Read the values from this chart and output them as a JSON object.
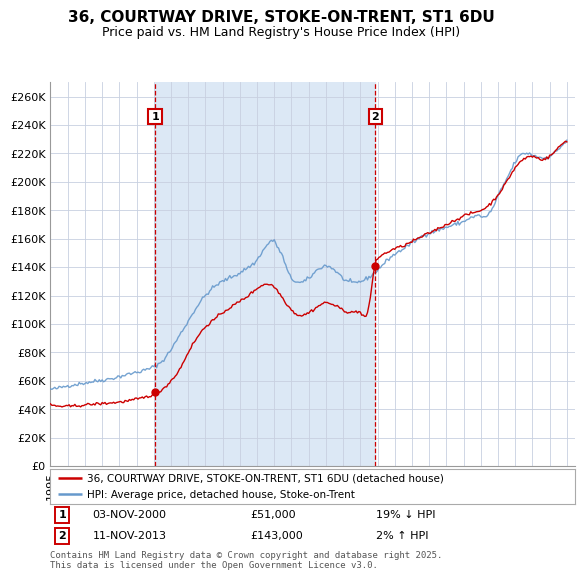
{
  "title": "36, COURTWAY DRIVE, STOKE-ON-TRENT, ST1 6DU",
  "subtitle": "Price paid vs. HM Land Registry's House Price Index (HPI)",
  "ylim": [
    0,
    270000
  ],
  "yticks": [
    0,
    20000,
    40000,
    60000,
    80000,
    100000,
    120000,
    140000,
    160000,
    180000,
    200000,
    220000,
    240000,
    260000
  ],
  "ytick_labels": [
    "£0",
    "£20K",
    "£40K",
    "£60K",
    "£80K",
    "£100K",
    "£120K",
    "£140K",
    "£160K",
    "£180K",
    "£200K",
    "£220K",
    "£240K",
    "£260K"
  ],
  "hpi_color": "#6699CC",
  "price_color": "#CC0000",
  "annotation_color": "#CC0000",
  "grid_color": "#C8D0E0",
  "shade_color": "#DCE8F5",
  "background_color": "#FFFFFF",
  "sale1_date": 2001.08,
  "sale1_price": 51000,
  "sale2_date": 2013.87,
  "sale2_price": 143000,
  "legend_items": [
    "36, COURTWAY DRIVE, STOKE-ON-TRENT, ST1 6DU (detached house)",
    "HPI: Average price, detached house, Stoke-on-Trent"
  ],
  "annotation1_text": "1",
  "annotation2_text": "2",
  "footnote": "Contains HM Land Registry data © Crown copyright and database right 2025.\nThis data is licensed under the Open Government Licence v3.0.",
  "title_fontsize": 11,
  "subtitle_fontsize": 9,
  "tick_fontsize": 8,
  "legend_fontsize": 8,
  "xmin": 1995.0,
  "xmax": 2025.5,
  "hpi_anchors_x": [
    1995.0,
    1995.5,
    1996.0,
    1996.5,
    1997.0,
    1997.5,
    1998.0,
    1998.5,
    1999.0,
    1999.5,
    2000.0,
    2000.5,
    2001.0,
    2001.5,
    2002.0,
    2002.5,
    2003.0,
    2003.5,
    2004.0,
    2004.5,
    2005.0,
    2005.5,
    2006.0,
    2006.5,
    2007.0,
    2007.25,
    2007.5,
    2007.75,
    2008.0,
    2008.25,
    2008.5,
    2008.75,
    2009.0,
    2009.25,
    2009.5,
    2009.75,
    2010.0,
    2010.25,
    2010.5,
    2010.75,
    2011.0,
    2011.25,
    2011.5,
    2011.75,
    2012.0,
    2012.25,
    2012.5,
    2012.75,
    2013.0,
    2013.25,
    2013.5,
    2013.75,
    2014.0,
    2014.25,
    2014.5,
    2014.75,
    2015.0,
    2015.25,
    2015.5,
    2015.75,
    2016.0,
    2016.25,
    2016.5,
    2016.75,
    2017.0,
    2017.25,
    2017.5,
    2017.75,
    2018.0,
    2018.25,
    2018.5,
    2018.75,
    2019.0,
    2019.25,
    2019.5,
    2019.75,
    2020.0,
    2020.25,
    2020.5,
    2020.75,
    2021.0,
    2021.25,
    2021.5,
    2021.75,
    2022.0,
    2022.25,
    2022.5,
    2022.75,
    2023.0,
    2023.25,
    2023.5,
    2023.75,
    2024.0,
    2024.25,
    2024.5,
    2024.75,
    2025.0
  ],
  "hpi_anchors_y": [
    54000,
    55000,
    56500,
    57500,
    58500,
    59500,
    60500,
    61500,
    63000,
    64500,
    66000,
    67500,
    70000,
    74000,
    82000,
    92000,
    102000,
    112000,
    120000,
    126000,
    130000,
    133000,
    136000,
    140000,
    145000,
    150000,
    154000,
    158000,
    158000,
    153000,
    147000,
    138000,
    132000,
    130000,
    129000,
    130000,
    132000,
    135000,
    138000,
    140000,
    141000,
    140000,
    138000,
    135000,
    132000,
    130000,
    129000,
    129000,
    130000,
    131000,
    133000,
    135000,
    138000,
    141000,
    144000,
    147000,
    149000,
    151000,
    153000,
    155000,
    157000,
    159000,
    161000,
    163000,
    164000,
    165000,
    166000,
    167000,
    168000,
    169000,
    170000,
    171000,
    172000,
    174000,
    175000,
    176000,
    176000,
    175000,
    178000,
    183000,
    190000,
    196000,
    202000,
    208000,
    214000,
    218000,
    220000,
    220000,
    219000,
    218000,
    217000,
    217000,
    218000,
    220000,
    223000,
    226000,
    229000
  ],
  "prop_anchors_x": [
    1995.0,
    1996.0,
    1997.0,
    1998.0,
    1999.0,
    2000.0,
    2001.08,
    2001.5,
    2002.0,
    2002.5,
    2003.0,
    2003.5,
    2004.0,
    2004.5,
    2005.0,
    2005.5,
    2006.0,
    2006.5,
    2007.0,
    2007.5,
    2008.0,
    2008.5,
    2009.0,
    2009.5,
    2010.0,
    2010.5,
    2011.0,
    2011.5,
    2012.0,
    2012.5,
    2013.0,
    2013.5,
    2013.87,
    2014.0,
    2014.5,
    2015.0,
    2015.5,
    2016.0,
    2016.5,
    2017.0,
    2017.5,
    2018.0,
    2018.5,
    2019.0,
    2019.5,
    2020.0,
    2020.5,
    2021.0,
    2021.5,
    2022.0,
    2022.5,
    2023.0,
    2023.5,
    2024.0,
    2024.5,
    2025.0
  ],
  "prop_anchors_y": [
    43000,
    42000,
    43000,
    44000,
    45000,
    47000,
    51000,
    54000,
    60000,
    68000,
    80000,
    90000,
    98000,
    103000,
    108000,
    112000,
    116000,
    120000,
    125000,
    128000,
    126000,
    118000,
    110000,
    106000,
    108000,
    112000,
    115000,
    113000,
    110000,
    108000,
    108000,
    112000,
    143000,
    146000,
    150000,
    153000,
    155000,
    158000,
    161000,
    164000,
    167000,
    170000,
    173000,
    176000,
    178000,
    180000,
    184000,
    191000,
    200000,
    210000,
    216000,
    218000,
    216000,
    218000,
    224000,
    229000
  ]
}
